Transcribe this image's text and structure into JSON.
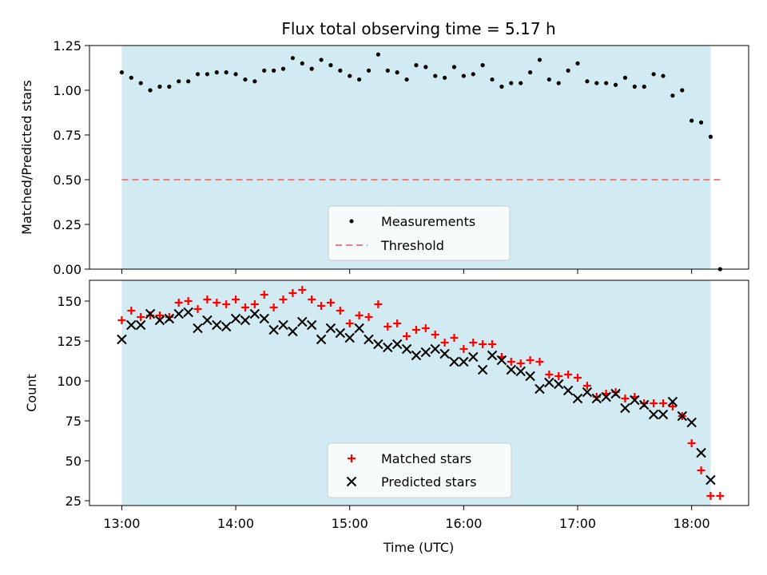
{
  "colors": {
    "band": "#add8e6",
    "measurement": "#000000",
    "threshold": "#f08080",
    "matched": "#ff0000",
    "predicted": "#000000"
  },
  "chart_data": [
    {
      "type": "scatter",
      "title": "Flux total observing time = 5.17 h",
      "xlabel": "",
      "ylabel": "Matched/Predicted stars",
      "xlim": [
        "12:43",
        "18:30"
      ],
      "ylim": [
        0,
        1.25
      ],
      "yticks": [
        "0.00",
        "0.25",
        "0.50",
        "0.75",
        "1.00",
        "1.25"
      ],
      "observing_window": [
        "13:00",
        "18:10"
      ],
      "threshold": {
        "name": "Threshold",
        "value": 0.5,
        "x_range": [
          "13:00",
          "18:15"
        ],
        "style": "dashed"
      },
      "legend_position": "lower center",
      "series": [
        {
          "name": "Measurements",
          "marker": "dot",
          "x": [
            "13:00",
            "13:05",
            "13:10",
            "13:15",
            "13:20",
            "13:25",
            "13:30",
            "13:35",
            "13:40",
            "13:45",
            "13:50",
            "13:55",
            "14:00",
            "14:05",
            "14:10",
            "14:15",
            "14:20",
            "14:25",
            "14:30",
            "14:35",
            "14:40",
            "14:45",
            "14:50",
            "14:55",
            "15:00",
            "15:05",
            "15:10",
            "15:15",
            "15:20",
            "15:25",
            "15:30",
            "15:35",
            "15:40",
            "15:45",
            "15:50",
            "15:55",
            "16:00",
            "16:05",
            "16:10",
            "16:15",
            "16:20",
            "16:25",
            "16:30",
            "16:35",
            "16:40",
            "16:45",
            "16:50",
            "16:55",
            "17:00",
            "17:05",
            "17:10",
            "17:15",
            "17:20",
            "17:25",
            "17:30",
            "17:35",
            "17:40",
            "17:45",
            "17:50",
            "17:55",
            "18:00",
            "18:05",
            "18:10",
            "18:15"
          ],
          "y": [
            1.1,
            1.07,
            1.04,
            1.0,
            1.02,
            1.02,
            1.05,
            1.05,
            1.09,
            1.09,
            1.1,
            1.1,
            1.09,
            1.06,
            1.05,
            1.11,
            1.11,
            1.12,
            1.18,
            1.15,
            1.12,
            1.17,
            1.14,
            1.11,
            1.08,
            1.06,
            1.11,
            1.2,
            1.11,
            1.1,
            1.06,
            1.14,
            1.13,
            1.08,
            1.07,
            1.13,
            1.08,
            1.09,
            1.14,
            1.06,
            1.02,
            1.04,
            1.04,
            1.1,
            1.17,
            1.06,
            1.04,
            1.11,
            1.15,
            1.05,
            1.04,
            1.04,
            1.03,
            1.07,
            1.02,
            1.02,
            1.09,
            1.08,
            0.97,
            1.0,
            0.83,
            0.82,
            0.74,
            0.0
          ]
        }
      ]
    },
    {
      "type": "scatter",
      "title": "",
      "xlabel": "Time (UTC)",
      "ylabel": "Count",
      "xlim": [
        "12:43",
        "18:30"
      ],
      "ylim": [
        22,
        163
      ],
      "xticks": [
        "13:00",
        "14:00",
        "15:00",
        "16:00",
        "17:00",
        "18:00"
      ],
      "yticks": [
        "25",
        "50",
        "75",
        "100",
        "125",
        "150"
      ],
      "observing_window": [
        "13:00",
        "18:10"
      ],
      "legend_position": "lower center",
      "series": [
        {
          "name": "Matched stars",
          "marker": "plus",
          "x": [
            "13:00",
            "13:05",
            "13:10",
            "13:15",
            "13:20",
            "13:25",
            "13:30",
            "13:35",
            "13:40",
            "13:45",
            "13:50",
            "13:55",
            "14:00",
            "14:05",
            "14:10",
            "14:15",
            "14:20",
            "14:25",
            "14:30",
            "14:35",
            "14:40",
            "14:45",
            "14:50",
            "14:55",
            "15:00",
            "15:05",
            "15:10",
            "15:15",
            "15:20",
            "15:25",
            "15:30",
            "15:35",
            "15:40",
            "15:45",
            "15:50",
            "15:55",
            "16:00",
            "16:05",
            "16:10",
            "16:15",
            "16:20",
            "16:25",
            "16:30",
            "16:35",
            "16:40",
            "16:45",
            "16:50",
            "16:55",
            "17:00",
            "17:05",
            "17:10",
            "17:15",
            "17:20",
            "17:25",
            "17:30",
            "17:35",
            "17:40",
            "17:45",
            "17:50",
            "17:55",
            "18:00",
            "18:05",
            "18:10",
            "18:15"
          ],
          "y": [
            138,
            144,
            140,
            141,
            141,
            140,
            149,
            150,
            145,
            151,
            149,
            148,
            151,
            146,
            148,
            154,
            146,
            151,
            155,
            157,
            151,
            147,
            149,
            144,
            136,
            141,
            140,
            148,
            134,
            136,
            128,
            132,
            133,
            129,
            124,
            127,
            120,
            124,
            123,
            123,
            115,
            112,
            111,
            113,
            112,
            104,
            103,
            104,
            102,
            97,
            90,
            92,
            93,
            89,
            90,
            86,
            86,
            86,
            84,
            78,
            61,
            44,
            28,
            28
          ]
        },
        {
          "name": "Predicted stars",
          "marker": "x",
          "x": [
            "13:00",
            "13:05",
            "13:10",
            "13:15",
            "13:20",
            "13:25",
            "13:30",
            "13:35",
            "13:40",
            "13:45",
            "13:50",
            "13:55",
            "14:00",
            "14:05",
            "14:10",
            "14:15",
            "14:20",
            "14:25",
            "14:30",
            "14:35",
            "14:40",
            "14:45",
            "14:50",
            "14:55",
            "15:00",
            "15:05",
            "15:10",
            "15:15",
            "15:20",
            "15:25",
            "15:30",
            "15:35",
            "15:40",
            "15:45",
            "15:50",
            "15:55",
            "16:00",
            "16:05",
            "16:10",
            "16:15",
            "16:20",
            "16:25",
            "16:30",
            "16:35",
            "16:40",
            "16:45",
            "16:50",
            "16:55",
            "17:00",
            "17:05",
            "17:10",
            "17:15",
            "17:20",
            "17:25",
            "17:30",
            "17:35",
            "17:40",
            "17:45",
            "17:50",
            "17:55",
            "18:00",
            "18:05",
            "18:10"
          ],
          "y": [
            126,
            135,
            135,
            142,
            138,
            139,
            142,
            143,
            133,
            138,
            135,
            134,
            139,
            138,
            142,
            139,
            132,
            135,
            131,
            137,
            135,
            126,
            133,
            130,
            127,
            133,
            126,
            123,
            121,
            123,
            120,
            116,
            118,
            120,
            117,
            112,
            112,
            115,
            107,
            116,
            113,
            107,
            106,
            103,
            95,
            99,
            98,
            94,
            89,
            93,
            89,
            90,
            92,
            83,
            88,
            85,
            79,
            79,
            87,
            78,
            74,
            55,
            38
          ]
        }
      ]
    }
  ]
}
